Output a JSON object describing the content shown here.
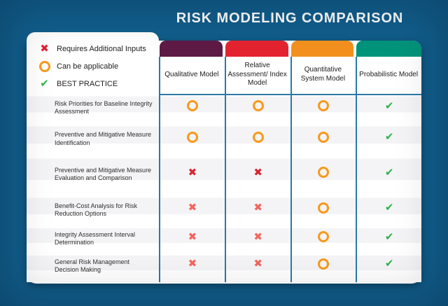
{
  "title": "RISK MODELING COMPARISON",
  "legend": {
    "items": [
      {
        "symbol": "cross",
        "label": "Requires Additional Inputs"
      },
      {
        "symbol": "circle",
        "label": "Can be applicable"
      },
      {
        "symbol": "check",
        "label": "BEST PRACTICE"
      }
    ]
  },
  "table": {
    "columns": [
      {
        "label": "Qualitative Model",
        "bar_color": "#5D1B45"
      },
      {
        "label": "Relative Assessment/ Index Model",
        "bar_color": "#E32430"
      },
      {
        "label": "Quantitative System Model",
        "bar_color": "#F2911E"
      },
      {
        "label": "Probabilistic Model",
        "bar_color": "#00947B"
      }
    ],
    "rows": [
      {
        "label": "Risk Priorities for Baseline Integrity Assessment",
        "cells": [
          "circle",
          "circle",
          "circle",
          "check"
        ]
      },
      {
        "label": "Preventive and Mitigative Measure Identification",
        "cells": [
          "circle",
          "circle",
          "circle",
          "check"
        ]
      },
      {
        "label": "Preventive and Mitigative Measure Evaluation and Comparison",
        "cells": [
          "cross",
          "cross",
          "circle",
          "check"
        ]
      },
      {
        "label": "Benefit-Cost Analysis for Risk Reduction Options",
        "cells": [
          "cross-light",
          "cross-light",
          "circle",
          "check"
        ]
      },
      {
        "label": "Integrity Assessment Interval Determination",
        "cells": [
          "cross-light",
          "cross-light",
          "circle",
          "check"
        ]
      },
      {
        "label": "General Risk Management Decision Making",
        "cells": [
          "cross-light",
          "cross-light",
          "circle",
          "check"
        ]
      }
    ]
  },
  "colors": {
    "background": "#115E8C",
    "grid_line": "#2B79A7",
    "row_stripe": "#F4F4F6",
    "cross": "#DA2430",
    "cross_light": "#F4645C",
    "circle": "#F8991D",
    "check": "#2EB34A",
    "title_text": "#FFFFFF"
  }
}
